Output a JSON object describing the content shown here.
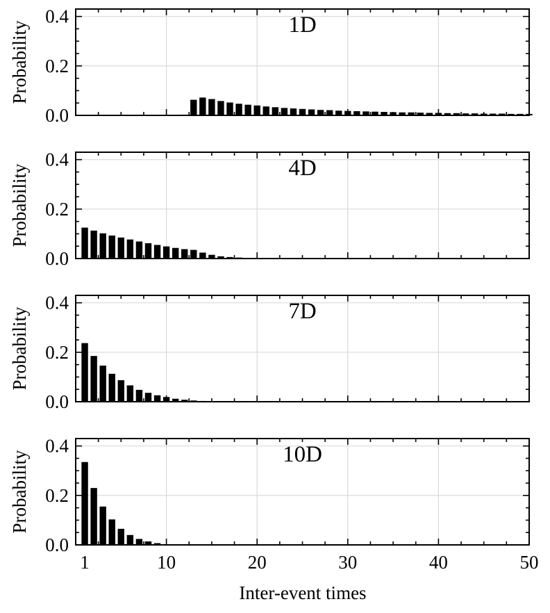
{
  "chart_data": [
    {
      "type": "bar",
      "title": "1D",
      "ylabel": "Probability",
      "xlabel": "",
      "xlim": [
        0,
        50
      ],
      "ylim": [
        0,
        0.43
      ],
      "yticks": [
        "0.0",
        "0.2",
        "0.4"
      ],
      "grid": true,
      "x": [
        12,
        13,
        14,
        15,
        16,
        17,
        18,
        19,
        20,
        21,
        22,
        23,
        24,
        25,
        26,
        27,
        28,
        29,
        30,
        31,
        32,
        33,
        34,
        35,
        36,
        37,
        38,
        39,
        40,
        41,
        42,
        43,
        44,
        45,
        46,
        47,
        48,
        49,
        50
      ],
      "values": [
        0.003,
        0.063,
        0.072,
        0.066,
        0.058,
        0.052,
        0.047,
        0.043,
        0.04,
        0.036,
        0.033,
        0.03,
        0.028,
        0.026,
        0.024,
        0.022,
        0.021,
        0.019,
        0.018,
        0.017,
        0.016,
        0.015,
        0.014,
        0.013,
        0.012,
        0.012,
        0.011,
        0.01,
        0.01,
        0.009,
        0.009,
        0.008,
        0.008,
        0.007,
        0.007,
        0.007,
        0.006,
        0.006,
        0.006
      ]
    },
    {
      "type": "bar",
      "title": "4D",
      "ylabel": "Probability",
      "xlabel": "",
      "xlim": [
        0,
        50
      ],
      "ylim": [
        0,
        0.43
      ],
      "yticks": [
        "0.0",
        "0.2",
        "0.4"
      ],
      "grid": true,
      "x": [
        1,
        2,
        3,
        4,
        5,
        6,
        7,
        8,
        9,
        10,
        11,
        12,
        13,
        14,
        15,
        16,
        17,
        18,
        19,
        20
      ],
      "values": [
        0.125,
        0.113,
        0.102,
        0.093,
        0.085,
        0.077,
        0.069,
        0.062,
        0.055,
        0.049,
        0.043,
        0.038,
        0.035,
        0.024,
        0.015,
        0.009,
        0.006,
        0.004,
        0.002,
        0.001
      ]
    },
    {
      "type": "bar",
      "title": "7D",
      "ylabel": "Probability",
      "xlabel": "",
      "xlim": [
        0,
        50
      ],
      "ylim": [
        0,
        0.43
      ],
      "yticks": [
        "0.0",
        "0.2",
        "0.4"
      ],
      "grid": true,
      "x": [
        1,
        2,
        3,
        4,
        5,
        6,
        7,
        8,
        9,
        10,
        11,
        12,
        13,
        14,
        15
      ],
      "values": [
        0.237,
        0.185,
        0.146,
        0.113,
        0.087,
        0.066,
        0.048,
        0.036,
        0.026,
        0.019,
        0.012,
        0.008,
        0.005,
        0.003,
        0.001
      ]
    },
    {
      "type": "bar",
      "title": "10D",
      "ylabel": "Probability",
      "xlabel": "Inter-event times",
      "xlim": [
        0,
        50
      ],
      "ylim": [
        0,
        0.43
      ],
      "xticks": [
        1,
        10,
        20,
        30,
        40,
        50
      ],
      "xticklabels": [
        "1",
        "10",
        "20",
        "30",
        "40",
        "50"
      ],
      "yticks": [
        "0.0",
        "0.2",
        "0.4"
      ],
      "grid": true,
      "x": [
        1,
        2,
        3,
        4,
        5,
        6,
        7,
        8,
        9,
        10
      ],
      "values": [
        0.335,
        0.23,
        0.155,
        0.103,
        0.065,
        0.04,
        0.024,
        0.014,
        0.007,
        0.003
      ]
    }
  ]
}
